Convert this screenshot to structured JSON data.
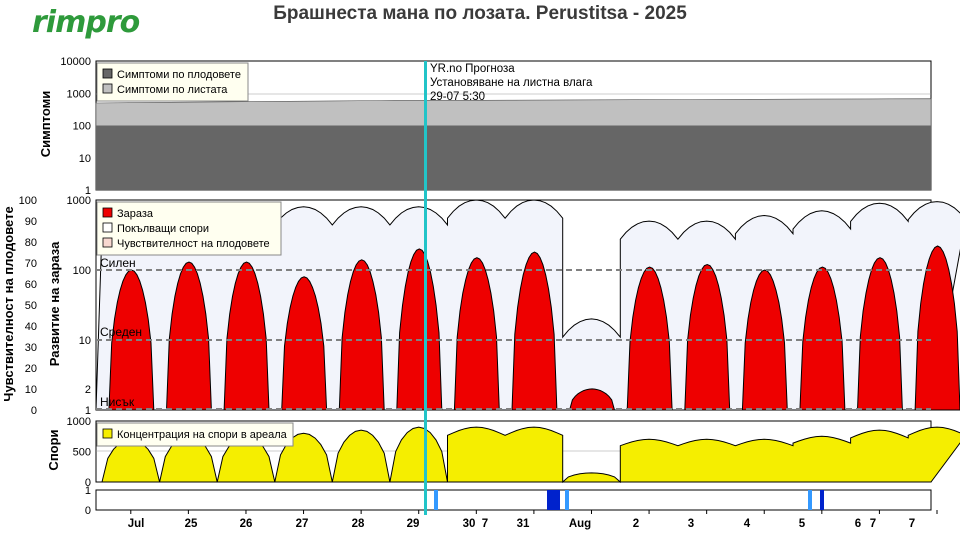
{
  "header": {
    "logo": "rimpro",
    "title": "Брашнеста мана по лозата.  Perustitsa - 2025"
  },
  "colors": {
    "fruit_symptoms": "#666666",
    "leaf_symptoms": "#c0c0c0",
    "infection": "#ee0000",
    "spores": "#f2f4fb",
    "spore_conc": "#f5ee00",
    "rain": "#0022cc",
    "wetness": "#3399ff",
    "now_line": "#22c4c8"
  },
  "panels": {
    "symptoms": {
      "ylabel": "Симптоми",
      "ticks": [
        "10000",
        "1000",
        "100",
        "10",
        "1"
      ],
      "legend": [
        "Симптоми по плодовете",
        "Симптоми по листата"
      ]
    },
    "infection": {
      "ylabel_left": "Чувствителност на плодовете",
      "ylabel_right": "Развитие на зараза",
      "ticks_left": [
        "100",
        "90",
        "80",
        "70",
        "60",
        "50",
        "40",
        "30",
        "20",
        "10",
        "0"
      ],
      "ticks_right": [
        "1000",
        "100",
        "10",
        "2",
        "1"
      ],
      "levels": [
        "Силен",
        "Среден",
        "Нисък"
      ],
      "legend": [
        "Зараза",
        "Покълващи спори",
        "Чувствителност на плодовете"
      ]
    },
    "spores": {
      "ylabel": "Спори",
      "ticks": [
        "1000",
        "500",
        "0"
      ],
      "legend": [
        "Концентрация на спори в ареала"
      ]
    },
    "rain": {
      "ticks": [
        "1",
        "0"
      ]
    }
  },
  "annotation": {
    "line1": "YR.no Прогноза",
    "line2": "Установяване на листна влага",
    "line3": "29-07 5:30"
  },
  "x_axis": {
    "labels": [
      "Jul",
      "25",
      "26",
      "27",
      "28",
      "29",
      "30",
      "7",
      "31",
      "Aug",
      "2",
      "3",
      "4",
      "5",
      "6",
      "7",
      "7"
    ]
  },
  "chart_data": [
    {
      "type": "area",
      "title": "",
      "ylabel": "Симптоми",
      "yscale": "log",
      "ylim": [
        1,
        10000
      ],
      "x_range": [
        "2025-07-24",
        "2025-08-07"
      ],
      "series": [
        {
          "name": "Симптоми по плодовете",
          "values": [
            100,
            100,
            100,
            100,
            100,
            100,
            100,
            100,
            100,
            100,
            100,
            100,
            100,
            100,
            100
          ]
        },
        {
          "name": "Симптоми по листата",
          "values": [
            500,
            520,
            540,
            560,
            580,
            600,
            600,
            610,
            620,
            630,
            640,
            650,
            660,
            670,
            680
          ]
        }
      ]
    },
    {
      "type": "area",
      "title": "",
      "ylabel": "Развитие на зараза",
      "yscale": "log",
      "ylim": [
        1,
        1000
      ],
      "x_range": [
        "2025-07-24",
        "2025-08-07"
      ],
      "series": [
        {
          "name": "Зараза",
          "daily_peaks": [
            100,
            130,
            130,
            80,
            140,
            200,
            150,
            180,
            2,
            110,
            120,
            100,
            110,
            150,
            220
          ]
        },
        {
          "name": "Покълващи спори",
          "daily_peaks": [
            700,
            700,
            700,
            800,
            800,
            800,
            1000,
            1000,
            20,
            500,
            500,
            600,
            700,
            900,
            950
          ]
        }
      ],
      "levels": {
        "Силен": 100,
        "Среден": 10,
        "Нисък": 1
      }
    },
    {
      "type": "area",
      "title": "",
      "ylabel": "Спори",
      "ylim": [
        0,
        1000
      ],
      "x_range": [
        "2025-07-24",
        "2025-08-07"
      ],
      "series": [
        {
          "name": "Концентрация на спори в ареала",
          "daily_peaks": [
            700,
            750,
            750,
            800,
            850,
            900,
            900,
            900,
            150,
            700,
            700,
            700,
            750,
            850,
            900
          ]
        }
      ]
    },
    {
      "type": "bar",
      "title": "",
      "ylim": [
        0,
        1
      ],
      "x_range": [
        "2025-07-24",
        "2025-08-07"
      ],
      "series": [
        {
          "name": "wetness",
          "events": [
            "2025-07-29",
            "2025-07-31",
            "2025-08-05"
          ]
        }
      ]
    }
  ]
}
